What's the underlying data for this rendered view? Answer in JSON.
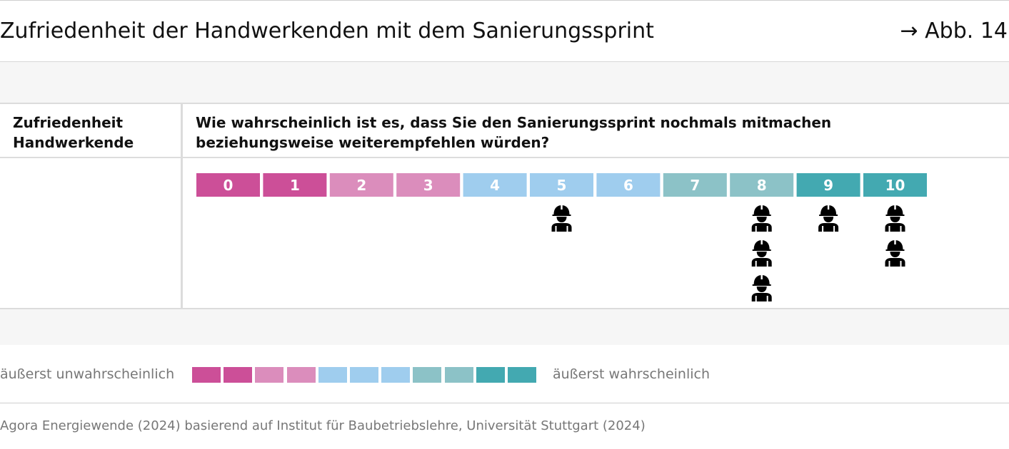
{
  "header": {
    "title": "Zufriedenheit der Handwerkenden mit dem Sanierungssprint",
    "figure_ref": "→ Abb. 14"
  },
  "table": {
    "row_label": "Zufriedenheit Handwerkende",
    "question": "Wie wahrscheinlich ist es, dass Sie den Sanierungssprint nochmals mitmachen beziehungsweise weiterempfehlen würden?"
  },
  "chart_data": {
    "type": "dot-scale",
    "categories": [
      "0",
      "1",
      "2",
      "3",
      "4",
      "5",
      "6",
      "7",
      "8",
      "9",
      "10"
    ],
    "values": [
      0,
      0,
      0,
      0,
      0,
      1,
      0,
      0,
      3,
      1,
      2
    ],
    "colors": [
      "#cc4f98",
      "#cc4f98",
      "#db8dbc",
      "#db8dbc",
      "#9fcdee",
      "#9fcdee",
      "#9fcdee",
      "#8cc2c7",
      "#8cc2c7",
      "#43a9b1",
      "#43a9b1"
    ],
    "icon": "construction-worker-icon"
  },
  "legend": {
    "left_label": "äußerst unwahrscheinlich",
    "right_label": "äußerst wahrscheinlich"
  },
  "source": "Agora Energiewende (2024) basierend auf Institut für Baubetriebslehre, Universität Stuttgart (2024)"
}
